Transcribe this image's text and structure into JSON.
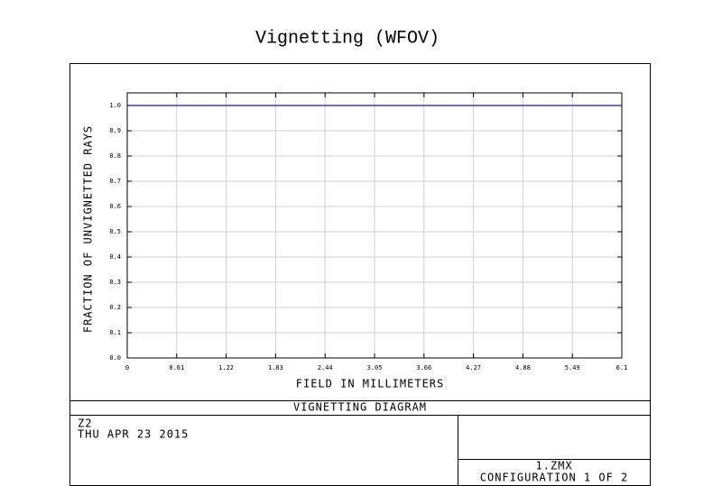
{
  "chart_data": {
    "type": "line",
    "title": "Vignetting (WFOV)",
    "xlabel": "FIELD IN MILLIMETERS",
    "ylabel": "FRACTION OF UNVIGNETTED RAYS",
    "x": [
      0,
      6.1
    ],
    "series": [
      {
        "color": "#1a1a9c",
        "values": [
          1.0,
          1.0
        ]
      }
    ],
    "xlim": [
      0,
      6.1
    ],
    "xticks": [
      0,
      0.61,
      1.22,
      1.83,
      2.44,
      3.05,
      3.66,
      4.27,
      4.88,
      5.49,
      6.1
    ],
    "ylim": [
      0,
      1.05
    ],
    "yticks": [
      {
        "value": 0,
        "label": "0.0"
      },
      {
        "value": 0.1,
        "label": "0.1"
      },
      {
        "value": 0.2,
        "label": "0.2"
      },
      {
        "value": 0.3,
        "label": "0.3"
      },
      {
        "value": 0.4,
        "label": "0.4"
      },
      {
        "value": 0.5,
        "label": "0.5"
      },
      {
        "value": 0.6,
        "label": "0.6"
      },
      {
        "value": 0.7,
        "label": "0.7"
      },
      {
        "value": 0.8,
        "label": "0.8"
      },
      {
        "value": 0.9,
        "label": "0.9"
      },
      {
        "value": 1.0,
        "label": "1.0"
      }
    ],
    "grid": true
  },
  "footer": {
    "caption": "VIGNETTING DIAGRAM",
    "lines": [
      "Z2",
      "THU APR 23 2015"
    ],
    "file": "1.ZMX",
    "config": "CONFIGURATION 1 OF 2"
  }
}
